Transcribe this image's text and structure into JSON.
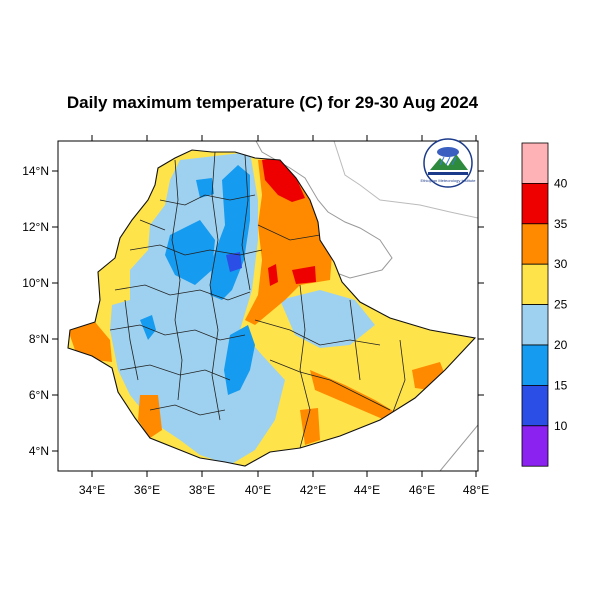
{
  "title": "Daily maximum temperature (C) for 29-30 Aug 2024",
  "x_ticks": [
    "34°E",
    "36°E",
    "38°E",
    "40°E",
    "42°E",
    "44°E",
    "46°E",
    "48°E"
  ],
  "y_ticks": [
    "14°N",
    "12°N",
    "10°N",
    "8°N",
    "6°N",
    "4°N"
  ],
  "colorbar": {
    "labels": [
      "10",
      "15",
      "20",
      "25",
      "30",
      "35",
      "40"
    ],
    "colors": [
      "#8b22f0",
      "#2a4ee6",
      "#159bf0",
      "#9ed1ef",
      "#ffe34a",
      "#ff8a00",
      "#ee0000",
      "#ffb2b6"
    ]
  },
  "logo": {
    "text": "Ethiopian Meteorology Institute"
  },
  "chart_data": {
    "type": "heatmap",
    "title": "Daily maximum temperature (C) for 29-30 Aug 2024",
    "xlim": [
      33.0,
      48.2
    ],
    "ylim": [
      3.2,
      15.0
    ],
    "color_levels": [
      10,
      15,
      20,
      25,
      30,
      35,
      40
    ]
  }
}
